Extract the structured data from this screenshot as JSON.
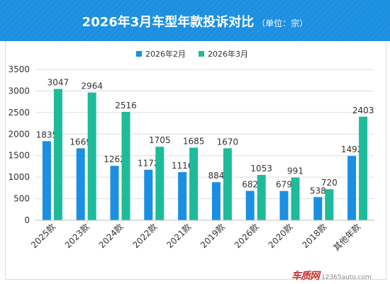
{
  "header": {
    "title": "2026年3月车型年款投诉对比",
    "subtitle": "（单位：宗）",
    "bar_color": "#1b8fe0"
  },
  "watermark": {
    "logo_text": "车质网",
    "url_text": "12365auto.com"
  },
  "chart_data": {
    "type": "bar",
    "categories": [
      "2025款",
      "2023款",
      "2024款",
      "2022款",
      "2021款",
      "2019款",
      "2026款",
      "2020款",
      "2018款",
      "其他年款"
    ],
    "series": [
      {
        "name": "2026年2月",
        "color": "#1a8fe3",
        "values": [
          1835,
          1669,
          1262,
          1172,
          1116,
          884,
          682,
          679,
          538,
          1492
        ]
      },
      {
        "name": "2026年3月",
        "color": "#1dbb9a",
        "values": [
          3047,
          2964,
          2516,
          1705,
          1685,
          1670,
          1053,
          991,
          720,
          2403
        ]
      }
    ],
    "ylim": [
      0,
      3500
    ],
    "yticks": [
      0,
      500,
      1000,
      1500,
      2000,
      2500,
      3000,
      3500
    ],
    "legend_position": "top-center",
    "grid": "horizontal"
  }
}
